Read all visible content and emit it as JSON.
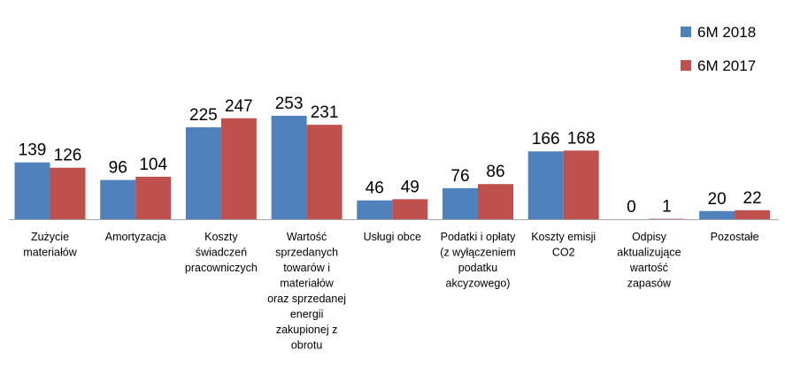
{
  "chart_data": {
    "type": "bar",
    "categories": [
      "Zużycie materiałów",
      "Amortyzacja",
      "Koszty świadczeń pracowniczych",
      "Wartość sprzedanych towarów i materiałów oraz sprzedanej energii zakupionej z obrotu",
      "Usługi obce",
      "Podatki i opłaty (z wyłączeniem podatku akcyzowego)",
      "Koszty emisji CO2",
      "Odpisy aktualizujące wartość zapasów",
      "Pozostałe"
    ],
    "category_lines": [
      [
        "Zużycie",
        "materiałów"
      ],
      [
        "Amortyzacja"
      ],
      [
        "Koszty",
        "świadczeń",
        "pracowniczych"
      ],
      [
        "Wartość",
        "sprzedanych",
        "towarów i",
        "materiałów",
        "oraz sprzedanej",
        "energii",
        "zakupionej z",
        "obrotu"
      ],
      [
        "Usługi obce"
      ],
      [
        "Podatki i opłaty",
        "(z wyłączeniem",
        "podatku",
        "akcyzowego)"
      ],
      [
        "Koszty emisji",
        "CO2"
      ],
      [
        "Odpisy",
        "aktualizujące",
        "wartość",
        "zapasów"
      ],
      [
        "Pozostałe"
      ]
    ],
    "series": [
      {
        "name": "6M 2018",
        "color": "#4f81bd",
        "values": [
          139,
          96,
          225,
          253,
          46,
          76,
          166,
          0,
          20
        ]
      },
      {
        "name": "6M 2017",
        "color": "#c0504d",
        "values": [
          126,
          104,
          247,
          231,
          49,
          86,
          168,
          1,
          22
        ]
      }
    ],
    "ylim": [
      0,
      253
    ],
    "legend": "top-right",
    "grid": false,
    "axis_color": "#a6a6a6"
  }
}
